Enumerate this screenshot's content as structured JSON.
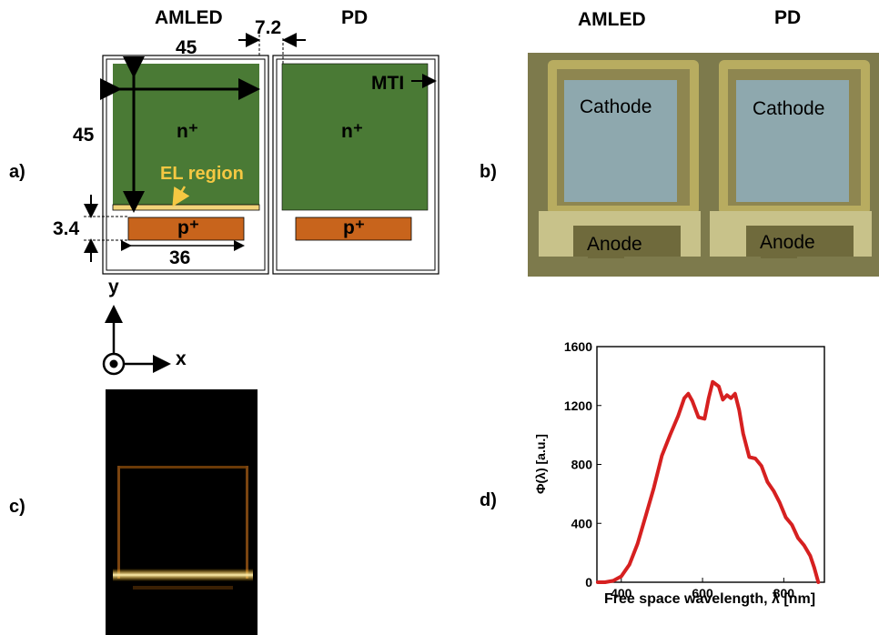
{
  "panels": {
    "a": "a)",
    "b": "b)",
    "c": "c)",
    "d": "d)"
  },
  "schematic": {
    "device_labels": [
      "AMLED",
      "PD"
    ],
    "dim_width": "45",
    "dim_gap": "7.2",
    "dim_height": "45",
    "dim_p_height": "3.4",
    "dim_p_width": "36",
    "n_region": "n⁺",
    "p_region": "p⁺",
    "el_label": "EL region",
    "mti_label": "MTI",
    "axis_x": "x",
    "axis_y": "y",
    "colors": {
      "n_region": "#4a7a35",
      "p_region": "#c8641c",
      "el_region": "#f2d47a",
      "el_text": "#f5c842"
    }
  },
  "photo": {
    "device_labels": [
      "AMLED",
      "PD"
    ],
    "cathode": "Cathode",
    "anode": "Anode",
    "colors": {
      "background": "#7d7a4c",
      "cathode": "#8ea8ae",
      "metal": "#b8ac60"
    }
  },
  "chart_data": {
    "type": "line",
    "xlabel": "Free space wavelength, λ [nm]",
    "ylabel": "Φ(λ) [a.u.]",
    "xlim": [
      340,
      900
    ],
    "ylim": [
      0,
      1600
    ],
    "xticks": [
      "400",
      "600",
      "800"
    ],
    "yticks": [
      "0",
      "400",
      "800",
      "1200",
      "1600"
    ],
    "grid": false,
    "series": [
      {
        "color": "#d62020",
        "x": [
          342,
          360,
          380,
          400,
          420,
          440,
          460,
          480,
          500,
          520,
          540,
          555,
          565,
          575,
          590,
          605,
          615,
          625,
          640,
          650,
          660,
          670,
          680,
          690,
          700,
          715,
          730,
          745,
          760,
          775,
          790,
          805,
          820,
          835,
          850,
          865,
          875,
          885
        ],
        "y": [
          0,
          0,
          10,
          40,
          120,
          260,
          450,
          640,
          860,
          1000,
          1130,
          1250,
          1280,
          1230,
          1120,
          1110,
          1250,
          1360,
          1330,
          1240,
          1270,
          1250,
          1280,
          1170,
          1010,
          850,
          840,
          790,
          680,
          620,
          540,
          440,
          390,
          300,
          250,
          180,
          100,
          0
        ]
      }
    ]
  }
}
